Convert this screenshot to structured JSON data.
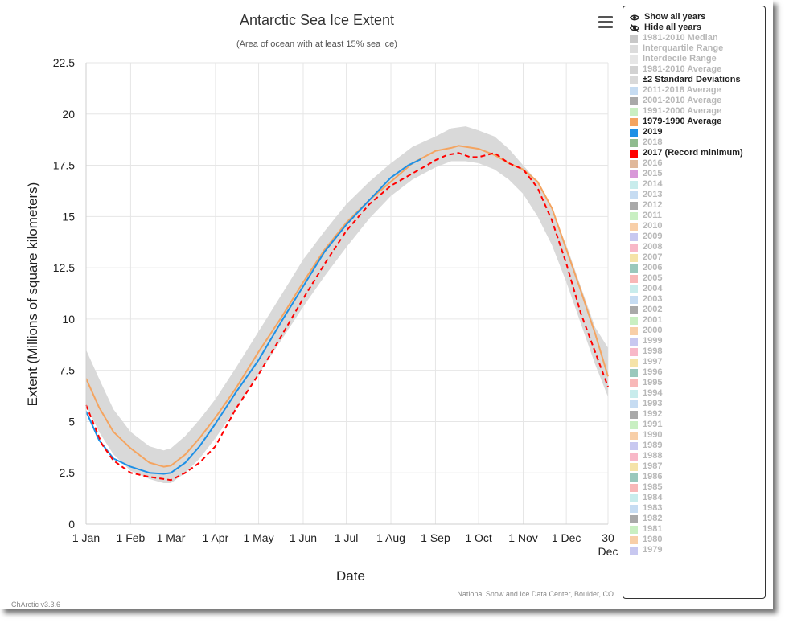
{
  "version_label": "ChArctic v3.3.6",
  "menu_icon": "hamburger-menu-icon",
  "legend": {
    "controls": [
      {
        "label": "Show all years",
        "icon": "eye-icon"
      },
      {
        "label": "Hide all years",
        "icon": "eye-slash-icon"
      }
    ],
    "items": [
      {
        "label": "1981-2010 Median",
        "color": "#c8c8c8",
        "on": false
      },
      {
        "label": "Interquartile Range",
        "color": "#dcdcdc",
        "on": false
      },
      {
        "label": "Interdecile Range",
        "color": "#e6e6e6",
        "on": false
      },
      {
        "label": "1981-2010 Average",
        "color": "#d2d2d2",
        "on": false
      },
      {
        "label": "±2 Standard Deviations",
        "color": "#d9d9d9",
        "on": true
      },
      {
        "label": "2011-2018 Average",
        "color": "#c6dcf2",
        "on": false
      },
      {
        "label": "2001-2010 Average",
        "color": "#a9a9a9",
        "on": false
      },
      {
        "label": "1991-2000 Average",
        "color": "#c9efc2",
        "on": false
      },
      {
        "label": "1979-1990 Average",
        "color": "#f4a460",
        "on": true
      },
      {
        "label": "2019",
        "color": "#1e90e6",
        "on": true
      },
      {
        "label": "2018",
        "color": "#8fbc8f",
        "on": false
      },
      {
        "label": "2017 (Record minimum)",
        "color": "#ff0000",
        "on": true
      },
      {
        "label": "2016",
        "color": "#e0b89a",
        "on": false
      },
      {
        "label": "2015",
        "color": "#d898d8",
        "on": false
      },
      {
        "label": "2014",
        "color": "#c8ecec",
        "on": false
      },
      {
        "label": "2013",
        "color": "#c6dcf2",
        "on": false
      },
      {
        "label": "2012",
        "color": "#a9a9a9",
        "on": false
      },
      {
        "label": "2011",
        "color": "#c9efc2",
        "on": false
      },
      {
        "label": "2010",
        "color": "#f8cfa8",
        "on": false
      },
      {
        "label": "2009",
        "color": "#c8c8f0",
        "on": false
      },
      {
        "label": "2008",
        "color": "#f8b8c8",
        "on": false
      },
      {
        "label": "2007",
        "color": "#f5e3a8",
        "on": false
      },
      {
        "label": "2006",
        "color": "#9ac8bc",
        "on": false
      },
      {
        "label": "2005",
        "color": "#f8b8b8",
        "on": false
      },
      {
        "label": "2004",
        "color": "#c8ecec",
        "on": false
      },
      {
        "label": "2003",
        "color": "#c6dcf2",
        "on": false
      },
      {
        "label": "2002",
        "color": "#a9a9a9",
        "on": false
      },
      {
        "label": "2001",
        "color": "#c9efc2",
        "on": false
      },
      {
        "label": "2000",
        "color": "#f8cfa8",
        "on": false
      },
      {
        "label": "1999",
        "color": "#c8c8f0",
        "on": false
      },
      {
        "label": "1998",
        "color": "#f8b8c8",
        "on": false
      },
      {
        "label": "1997",
        "color": "#f5e3a8",
        "on": false
      },
      {
        "label": "1996",
        "color": "#9ac8bc",
        "on": false
      },
      {
        "label": "1995",
        "color": "#f8b8b8",
        "on": false
      },
      {
        "label": "1994",
        "color": "#c8ecec",
        "on": false
      },
      {
        "label": "1993",
        "color": "#c6dcf2",
        "on": false
      },
      {
        "label": "1992",
        "color": "#a9a9a9",
        "on": false
      },
      {
        "label": "1991",
        "color": "#c9efc2",
        "on": false
      },
      {
        "label": "1990",
        "color": "#f8cfa8",
        "on": false
      },
      {
        "label": "1989",
        "color": "#c8c8f0",
        "on": false
      },
      {
        "label": "1988",
        "color": "#f8b8c8",
        "on": false
      },
      {
        "label": "1987",
        "color": "#f5e3a8",
        "on": false
      },
      {
        "label": "1986",
        "color": "#9ac8bc",
        "on": false
      },
      {
        "label": "1985",
        "color": "#f8b8b8",
        "on": false
      },
      {
        "label": "1984",
        "color": "#c8ecec",
        "on": false
      },
      {
        "label": "1983",
        "color": "#c6dcf2",
        "on": false
      },
      {
        "label": "1982",
        "color": "#a9a9a9",
        "on": false
      },
      {
        "label": "1981",
        "color": "#c9efc2",
        "on": false
      },
      {
        "label": "1980",
        "color": "#f8cfa8",
        "on": false
      },
      {
        "label": "1979",
        "color": "#c8c8f0",
        "on": false
      }
    ]
  },
  "chart_data": {
    "type": "line",
    "title": "Antarctic Sea Ice Extent",
    "subtitle": "(Area of ocean with at least 15% sea ice)",
    "xlabel": "Date",
    "ylabel": "Extent (Millions of square kilometers)",
    "credits": "National Snow and Ice Data Center, Boulder, CO",
    "xlim": [
      1,
      364
    ],
    "ylim": [
      0,
      22.5
    ],
    "grid": true,
    "x_ticks": [
      {
        "label": "1 Jan",
        "day": 1
      },
      {
        "label": "1 Feb",
        "day": 32
      },
      {
        "label": "1 Mar",
        "day": 60
      },
      {
        "label": "1 Apr",
        "day": 91
      },
      {
        "label": "1 May",
        "day": 121
      },
      {
        "label": "1 Jun",
        "day": 152
      },
      {
        "label": "1 Jul",
        "day": 182
      },
      {
        "label": "1 Aug",
        "day": 213
      },
      {
        "label": "1 Sep",
        "day": 244
      },
      {
        "label": "1 Oct",
        "day": 274
      },
      {
        "label": "1 Nov",
        "day": 305
      },
      {
        "label": "1 Dec",
        "day": 335
      },
      {
        "label": "30 Dec",
        "day": 364,
        "lines": [
          "30",
          "Dec"
        ]
      }
    ],
    "y_ticks": [
      {
        "label": "0",
        "value": 0
      },
      {
        "label": "2.5",
        "value": 2.5
      },
      {
        "label": "5",
        "value": 5
      },
      {
        "label": "7.5",
        "value": 7.5
      },
      {
        "label": "10",
        "value": 10
      },
      {
        "label": "12.5",
        "value": 12.5
      },
      {
        "label": "15",
        "value": 15
      },
      {
        "label": "17.5",
        "value": 17.5
      },
      {
        "label": "20",
        "value": 20
      },
      {
        "label": "22.5",
        "value": 22.5
      }
    ],
    "band": {
      "name": "±2 Standard Deviations",
      "color": "#d9d9d9",
      "x": [
        1,
        10,
        20,
        32,
        45,
        55,
        60,
        70,
        80,
        91,
        105,
        121,
        137,
        152,
        167,
        182,
        198,
        213,
        228,
        244,
        255,
        265,
        274,
        285,
        295,
        305,
        315,
        325,
        335,
        345,
        355,
        364
      ],
      "upper": [
        8.5,
        7.1,
        5.6,
        4.5,
        3.8,
        3.6,
        3.7,
        4.3,
        5.1,
        6.1,
        7.6,
        9.4,
        11.2,
        12.9,
        14.3,
        15.6,
        16.7,
        17.6,
        18.4,
        18.9,
        19.3,
        19.4,
        19.2,
        18.9,
        18.3,
        17.5,
        16.7,
        15.3,
        13.6,
        11.6,
        9.6,
        8.6
      ],
      "lower": [
        5.8,
        4.5,
        3.4,
        2.6,
        2.2,
        2.0,
        2.0,
        2.5,
        3.2,
        4.2,
        5.6,
        7.3,
        9.0,
        10.6,
        12.1,
        13.5,
        14.9,
        16.0,
        16.8,
        17.4,
        17.7,
        17.7,
        17.6,
        17.3,
        16.8,
        16.1,
        15.0,
        13.6,
        11.8,
        9.8,
        7.8,
        6.2
      ]
    },
    "series": [
      {
        "name": "1979-1990 Average",
        "color": "#f4a460",
        "dash": false,
        "x": [
          1,
          10,
          20,
          32,
          45,
          55,
          60,
          70,
          80,
          91,
          105,
          121,
          137,
          152,
          167,
          182,
          198,
          213,
          228,
          244,
          255,
          260,
          265,
          274,
          285,
          295,
          305,
          315,
          325,
          335,
          345,
          355,
          364
        ],
        "y": [
          7.1,
          5.7,
          4.5,
          3.7,
          3.0,
          2.8,
          2.85,
          3.4,
          4.2,
          5.2,
          6.6,
          8.4,
          10.1,
          11.8,
          13.4,
          14.7,
          15.8,
          16.7,
          17.6,
          18.2,
          18.35,
          18.45,
          18.4,
          18.3,
          18.0,
          17.6,
          17.3,
          16.7,
          15.4,
          13.4,
          11.4,
          9.3,
          7.2
        ]
      },
      {
        "name": "2019",
        "color": "#1e90e6",
        "dash": false,
        "x": [
          1,
          10,
          20,
          32,
          45,
          55,
          60,
          70,
          80,
          91,
          105,
          121,
          137,
          152,
          167,
          182,
          198,
          213,
          225,
          234
        ],
        "y": [
          5.5,
          4.1,
          3.2,
          2.8,
          2.5,
          2.45,
          2.5,
          3.0,
          3.8,
          4.9,
          6.4,
          8.0,
          9.9,
          11.6,
          13.3,
          14.6,
          15.8,
          16.9,
          17.5,
          17.8
        ]
      },
      {
        "name": "2017 (Record minimum)",
        "color": "#ff0000",
        "dash": true,
        "x": [
          1,
          12,
          20,
          32,
          45,
          55,
          60,
          70,
          80,
          91,
          105,
          121,
          137,
          152,
          167,
          182,
          198,
          213,
          228,
          238,
          244,
          252,
          260,
          268,
          274,
          285,
          295,
          305,
          315,
          325,
          335,
          345,
          355,
          364
        ],
        "y": [
          5.8,
          3.9,
          3.1,
          2.5,
          2.3,
          2.2,
          2.15,
          2.5,
          3.0,
          3.8,
          5.6,
          7.3,
          9.2,
          11.0,
          12.7,
          14.3,
          15.6,
          16.5,
          17.1,
          17.5,
          17.75,
          18.0,
          18.1,
          17.9,
          17.9,
          18.1,
          17.6,
          17.3,
          16.4,
          14.8,
          12.7,
          10.3,
          8.4,
          6.7
        ]
      }
    ]
  }
}
